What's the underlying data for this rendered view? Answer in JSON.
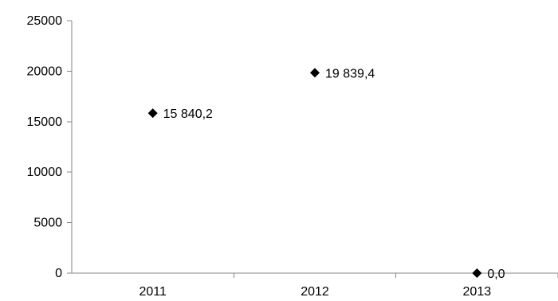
{
  "chart_data": {
    "type": "scatter",
    "categories": [
      "2011",
      "2012",
      "2013"
    ],
    "values": [
      15840.2,
      19839.4,
      0.0
    ],
    "data_labels": [
      "15 840,2",
      "19 839,4",
      "0,0"
    ],
    "y_ticks": [
      "0",
      "5000",
      "10000",
      "15000",
      "20000",
      "25000"
    ],
    "ylim": [
      0,
      25000
    ],
    "title": "",
    "xlabel": "",
    "ylabel": "",
    "grid": false,
    "marker": "diamond",
    "marker_color": "#000000",
    "axis_color": "#868686"
  }
}
